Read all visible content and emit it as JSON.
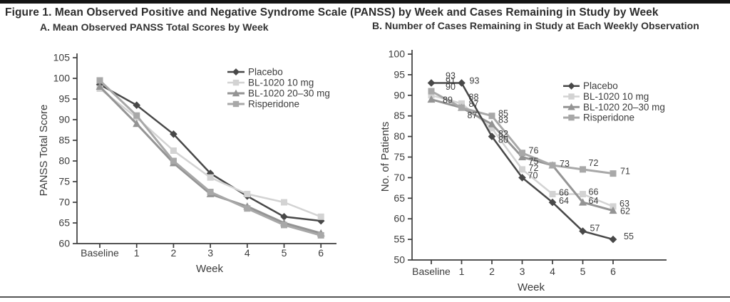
{
  "figure": {
    "title": "Figure 1. Mean Observed Positive and Negative Syndrome Scale (PANSS) by Week and Cases Remaining in Study by Week"
  },
  "colors": {
    "text": "#3c3c3c",
    "axis": "#3c3c3c",
    "placebo": "#484848",
    "bl1020_10mg": "#d3d3d3",
    "bl1020_20_30mg": "#949494",
    "risperidone": "#a8a8a8"
  },
  "chart_data": [
    {
      "type": "line",
      "panel": "A",
      "title": "A. Mean Observed PANSS Total Scores by Week",
      "categories": [
        "Baseline",
        "1",
        "2",
        "3",
        "4",
        "5",
        "6"
      ],
      "xlabel": "Week",
      "ylabel": "PANSS Total Score",
      "ylim": [
        60,
        105
      ],
      "ytick_step": 5,
      "grid": false,
      "legend_position": "upper-right-inside",
      "draw_order": [
        0,
        1,
        2,
        3
      ],
      "series": [
        {
          "name": "Placebo",
          "marker": "diamond",
          "color": "#484848",
          "width": 2.5,
          "values": [
            98.5,
            93.5,
            86.5,
            77,
            71.5,
            66.5,
            65.5
          ]
        },
        {
          "name": "BL-1020 10 mg",
          "marker": "square",
          "color": "#d3d3d3",
          "width": 2.5,
          "values": [
            97.5,
            90.5,
            82.5,
            76,
            72,
            70,
            66.5
          ]
        },
        {
          "name": "BL-1020 20–30 mg",
          "marker": "triangle",
          "color": "#949494",
          "width": 3,
          "values": [
            98,
            89,
            79.5,
            72,
            69,
            65,
            62.5
          ]
        },
        {
          "name": "Risperidone",
          "marker": "square",
          "color": "#a8a8a8",
          "width": 3,
          "values": [
            99.5,
            91,
            80,
            72.5,
            68.5,
            64.5,
            62
          ]
        }
      ]
    },
    {
      "type": "line",
      "panel": "B",
      "title": "B. Number of Cases Remaining in Study at Each Weekly Observation",
      "categories": [
        "Baseline",
        "1",
        "2",
        "3",
        "4",
        "5",
        "6"
      ],
      "xlabel": "Week",
      "ylabel": "No. of Patients",
      "ylim": [
        50,
        100
      ],
      "ytick_step": 5,
      "grid": false,
      "legend_position": "upper-right-inside",
      "draw_order": [
        1,
        2,
        3,
        0
      ],
      "series": [
        {
          "name": "Placebo",
          "marker": "diamond",
          "color": "#484848",
          "width": 2.5,
          "values": [
            93,
            93,
            80,
            70,
            64,
            57,
            55
          ],
          "labels": [
            "93",
            "93",
            "80",
            "70",
            "64",
            "57",
            "55"
          ],
          "label_offsets": [
            [
              20,
              -10
            ],
            [
              11,
              -3
            ],
            [
              9,
              5
            ],
            [
              8,
              -3
            ],
            [
              9,
              -2
            ],
            [
              10,
              -4
            ],
            [
              15,
              -4
            ]
          ]
        },
        {
          "name": "BL-1020 10 mg",
          "marker": "square",
          "color": "#d3d3d3",
          "width": 2.5,
          "values": [
            90,
            88,
            82,
            72,
            66,
            66,
            63
          ],
          "labels": [
            "90",
            "88",
            "82",
            "72",
            "66",
            "66",
            "63"
          ],
          "label_offsets": [
            [
              20,
              -12
            ],
            [
              10,
              -9
            ],
            [
              9,
              8
            ],
            [
              9,
              -2
            ],
            [
              9,
              -2
            ],
            [
              8,
              -3
            ],
            [
              9,
              -4
            ]
          ]
        },
        {
          "name": "BL-1020 20–30 mg",
          "marker": "triangle",
          "color": "#949494",
          "width": 3,
          "values": [
            89,
            87,
            83,
            75,
            73,
            64,
            62
          ],
          "labels": [
            "89",
            "87",
            "83",
            "75",
            null,
            "64",
            "62"
          ],
          "label_offsets": [
            [
              16,
              1
            ],
            [
              10,
              -5
            ],
            [
              9,
              -6
            ],
            [
              9,
              6
            ],
            null,
            [
              8,
              -2
            ],
            [
              10,
              1
            ]
          ]
        },
        {
          "name": "Risperidone",
          "marker": "square",
          "color": "#a8a8a8",
          "width": 3,
          "values": [
            91,
            87,
            85,
            76,
            73,
            72,
            71
          ],
          "labels": [
            "91",
            "87",
            "85",
            "76",
            "73",
            "72",
            "71"
          ],
          "label_offsets": [
            [
              20,
              -14
            ],
            [
              8,
              11
            ],
            [
              9,
              -3
            ],
            [
              9,
              -3
            ],
            [
              10,
              -2
            ],
            [
              8,
              -9
            ],
            [
              10,
              -3
            ]
          ]
        }
      ]
    }
  ]
}
